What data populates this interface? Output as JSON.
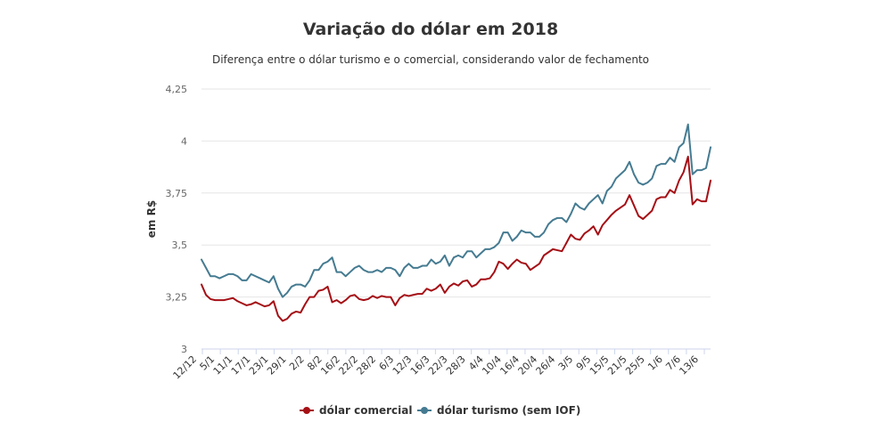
{
  "chart_data": {
    "type": "line",
    "title": "Variação do dólar em 2018",
    "subtitle": "Diferença entre o dólar turismo e o comercial, considerando valor de fechamento",
    "xlabel": "",
    "ylabel": "em R$",
    "ylim": [
      3,
      4.25
    ],
    "yticks": [
      3,
      3.25,
      3.5,
      3.75,
      4,
      4.25
    ],
    "ytick_labels": [
      "3",
      "3,25",
      "3,5",
      "3,75",
      "4",
      "4,25"
    ],
    "xtick_labels": [
      "12/12",
      "5/1",
      "11/1",
      "17/1",
      "23/1",
      "29/1",
      "2/2",
      "8/2",
      "16/2",
      "22/2",
      "28/2",
      "6/3",
      "12/3",
      "16/3",
      "22/3",
      "28/3",
      "4/4",
      "10/4",
      "16/4",
      "20/4",
      "26/4",
      "3/5",
      "9/5",
      "15/5",
      "21/5",
      "25/5",
      "1/6",
      "7/6",
      "13/6"
    ],
    "legend_position": "bottom",
    "series": [
      {
        "name": "dólar comercial",
        "color": "#a50f15",
        "values": [
          3.31,
          3.26,
          3.24,
          3.235,
          3.235,
          3.235,
          3.24,
          3.245,
          3.23,
          3.22,
          3.21,
          3.215,
          3.225,
          3.215,
          3.205,
          3.21,
          3.23,
          3.16,
          3.135,
          3.145,
          3.17,
          3.18,
          3.175,
          3.215,
          3.25,
          3.25,
          3.28,
          3.285,
          3.3,
          3.225,
          3.235,
          3.22,
          3.235,
          3.255,
          3.26,
          3.24,
          3.235,
          3.24,
          3.255,
          3.245,
          3.255,
          3.25,
          3.25,
          3.21,
          3.245,
          3.26,
          3.255,
          3.26,
          3.265,
          3.265,
          3.29,
          3.28,
          3.29,
          3.31,
          3.27,
          3.3,
          3.315,
          3.305,
          3.325,
          3.33,
          3.3,
          3.31,
          3.335,
          3.335,
          3.34,
          3.37,
          3.42,
          3.41,
          3.385,
          3.41,
          3.43,
          3.415,
          3.41,
          3.38,
          3.395,
          3.41,
          3.45,
          3.465,
          3.48,
          3.475,
          3.47,
          3.51,
          3.55,
          3.53,
          3.525,
          3.555,
          3.57,
          3.59,
          3.55,
          3.595,
          3.62,
          3.645,
          3.665,
          3.68,
          3.695,
          3.74,
          3.69,
          3.64,
          3.625,
          3.645,
          3.665,
          3.72,
          3.73,
          3.73,
          3.765,
          3.75,
          3.81,
          3.85,
          3.925,
          3.695,
          3.72,
          3.71,
          3.71,
          3.81
        ]
      },
      {
        "name": "dólar turismo (sem IOF)",
        "color": "#457b91",
        "values": [
          3.43,
          3.39,
          3.35,
          3.35,
          3.34,
          3.35,
          3.36,
          3.36,
          3.35,
          3.33,
          3.33,
          3.36,
          3.35,
          3.34,
          3.33,
          3.32,
          3.35,
          3.29,
          3.25,
          3.27,
          3.3,
          3.31,
          3.31,
          3.3,
          3.33,
          3.38,
          3.38,
          3.41,
          3.42,
          3.44,
          3.37,
          3.37,
          3.35,
          3.37,
          3.39,
          3.4,
          3.38,
          3.37,
          3.37,
          3.38,
          3.37,
          3.39,
          3.39,
          3.38,
          3.35,
          3.39,
          3.41,
          3.39,
          3.39,
          3.4,
          3.4,
          3.43,
          3.41,
          3.42,
          3.45,
          3.4,
          3.44,
          3.45,
          3.44,
          3.47,
          3.47,
          3.44,
          3.46,
          3.48,
          3.48,
          3.49,
          3.51,
          3.56,
          3.56,
          3.52,
          3.54,
          3.57,
          3.56,
          3.56,
          3.54,
          3.54,
          3.56,
          3.6,
          3.62,
          3.63,
          3.63,
          3.61,
          3.65,
          3.7,
          3.68,
          3.67,
          3.7,
          3.72,
          3.74,
          3.7,
          3.76,
          3.78,
          3.82,
          3.84,
          3.86,
          3.9,
          3.84,
          3.8,
          3.79,
          3.8,
          3.82,
          3.88,
          3.89,
          3.89,
          3.92,
          3.9,
          3.97,
          3.99,
          4.08,
          3.84,
          3.86,
          3.86,
          3.87,
          3.97
        ]
      }
    ]
  }
}
